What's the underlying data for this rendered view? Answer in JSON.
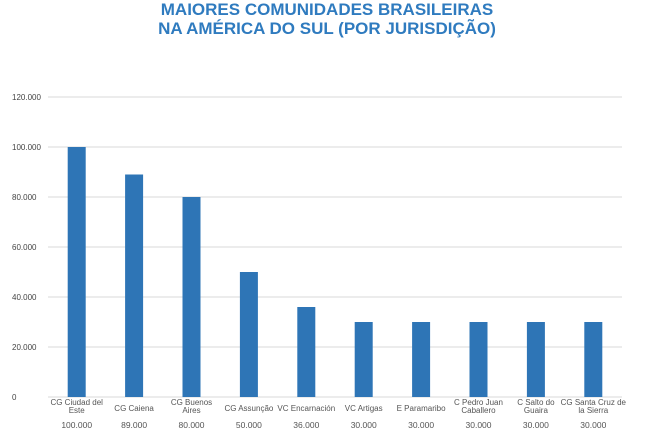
{
  "chart_data": {
    "type": "bar",
    "title": [
      "MAIORES COMUNIDADES BRASILEIRAS",
      "NA AMÉRICA DO SUL (POR JURISDIÇÃO)"
    ],
    "categories": [
      [
        "CG Ciudad del",
        "Este"
      ],
      [
        "CG Caiena"
      ],
      [
        "CG Buenos",
        "Aires"
      ],
      [
        "CG Assunção"
      ],
      [
        "VC Encarnación"
      ],
      [
        "VC Artigas"
      ],
      [
        "E Paramaribo"
      ],
      [
        "C Pedro Juan",
        "Caballero"
      ],
      [
        "C Salto do",
        "Guaira"
      ],
      [
        "CG Santa Cruz de",
        "la Sierra"
      ]
    ],
    "values": [
      100000,
      89000,
      80000,
      50000,
      36000,
      30000,
      30000,
      30000,
      30000,
      30000
    ],
    "value_labels": [
      "100.000",
      "89.000",
      "80.000",
      "50.000",
      "36.000",
      "30.000",
      "30.000",
      "30.000",
      "30.000",
      "30.000"
    ],
    "yticks": [
      0,
      20000,
      40000,
      60000,
      80000,
      100000,
      120000
    ],
    "ytick_labels": [
      "0",
      "20.000",
      "40.000",
      "60.000",
      "80.000",
      "100.000",
      "120.000"
    ],
    "ylim": [
      0,
      120000
    ],
    "xlabel": "",
    "ylabel": "",
    "grid": true,
    "bar_color": "#2e75b6",
    "grid_color": "#d9d9d9",
    "title_color": "#2f7bbf"
  }
}
